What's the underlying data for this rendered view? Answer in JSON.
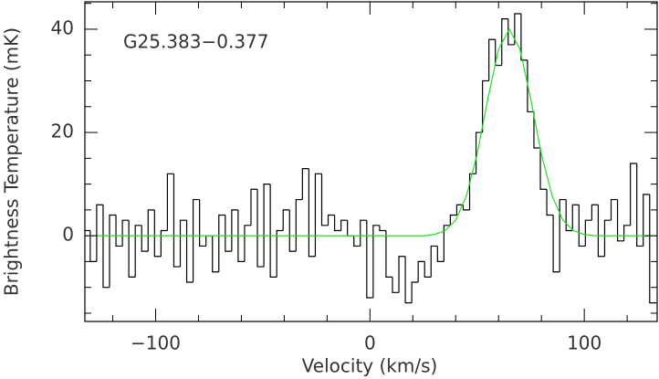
{
  "chart_data": {
    "type": "step",
    "annotation": "G25.383−0.377",
    "xlabel": "Velocity (km/s)",
    "ylabel": "Brightness Temperature (mK)",
    "xlim": [
      -133,
      134
    ],
    "ylim": [
      -16.6,
      45.3
    ],
    "xticks": [
      {
        "value": -100,
        "label": "−100"
      },
      0,
      100
    ],
    "xminorticks": [
      -120,
      -80,
      -60,
      -40,
      -20,
      20,
      40,
      60,
      80,
      120
    ],
    "yticks": [
      0,
      20,
      40
    ],
    "yminorticks": [
      -15,
      -10,
      -5,
      5,
      10,
      15,
      25,
      30,
      35,
      45
    ],
    "series": [
      {
        "name": "spectrum",
        "color": "#000000",
        "x": [
          -132,
          -129,
          -126,
          -123,
          -120,
          -117,
          -114,
          -111,
          -108,
          -105,
          -102,
          -99,
          -96,
          -93,
          -90,
          -87,
          -84,
          -81,
          -78,
          -75,
          -72,
          -69,
          -66,
          -63,
          -60,
          -57,
          -54,
          -51,
          -48,
          -45,
          -42,
          -39,
          -36,
          -33,
          -30,
          -27,
          -24,
          -21,
          -18,
          -15,
          -12,
          -9,
          -6,
          -3,
          0,
          3,
          6,
          9,
          12,
          15,
          18,
          21,
          24,
          27,
          30,
          33,
          36,
          39,
          42,
          45,
          48,
          51,
          54,
          57,
          60,
          63,
          66,
          69,
          72,
          75,
          78,
          81,
          84,
          87,
          90,
          93,
          96,
          99,
          102,
          105,
          108,
          111,
          114,
          117,
          120,
          123,
          126,
          129,
          132
        ],
        "values": [
          1,
          -5,
          6,
          -10,
          4,
          -2,
          3,
          -8,
          2,
          -3,
          5,
          -4,
          1,
          12,
          -6,
          3,
          -9,
          7,
          -2,
          0,
          -7,
          4,
          -3,
          5,
          -5,
          2,
          9,
          -6,
          10,
          -8,
          1,
          5,
          -3,
          7,
          13,
          -4,
          12,
          2,
          4,
          1,
          3,
          0,
          -2,
          3,
          -12,
          2,
          1,
          -8,
          -11,
          -4,
          -13,
          -9,
          -5,
          -8,
          -2,
          -5,
          2,
          4,
          6,
          5,
          12,
          20,
          30,
          38,
          33,
          42,
          37,
          43,
          34,
          24,
          17,
          9,
          4,
          -7,
          7,
          1,
          6,
          -2,
          3,
          6,
          -4,
          3,
          7,
          -1,
          2,
          14,
          -2,
          8,
          -13
        ]
      },
      {
        "name": "fit",
        "color": "#22dd22",
        "x": [
          -133,
          25,
          30,
          35,
          40,
          45,
          50,
          55,
          60,
          65,
          70,
          75,
          80,
          85,
          90,
          95,
          100,
          105,
          134
        ],
        "values": [
          0,
          0,
          0.25,
          0.97,
          3.0,
          7.7,
          15.8,
          26.5,
          36.1,
          40,
          36.1,
          26.5,
          15.8,
          7.7,
          3.0,
          0.97,
          0.25,
          0,
          0
        ]
      }
    ]
  }
}
